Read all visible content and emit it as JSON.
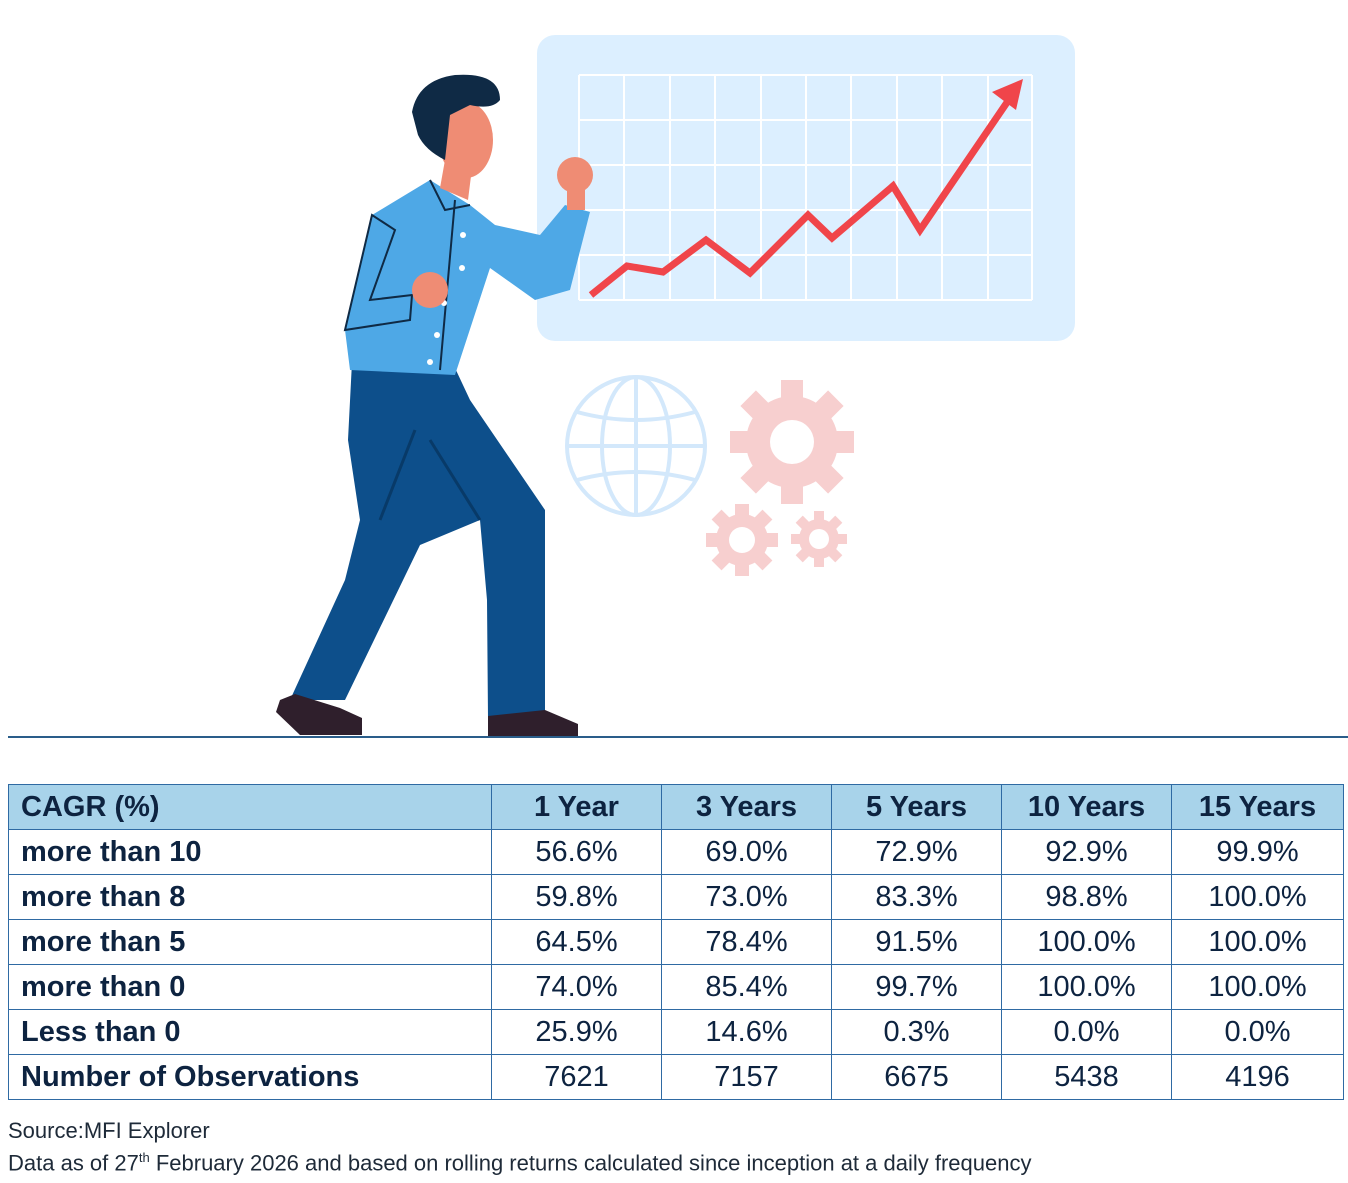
{
  "illustration": {
    "description_icons": [
      "person-icon",
      "line-chart-icon",
      "globe-icon",
      "gear-icon"
    ],
    "colors": {
      "board": "#dcefff",
      "trend_line": "#f0454a",
      "shirt": "#4ea8e6",
      "pants": "#0d4f8b",
      "skin": "#ef8c74",
      "hair": "#0f2a45",
      "globe": "#cfe6fa",
      "gears": "#f7cfcf"
    }
  },
  "table": {
    "headers": [
      "CAGR (%)",
      "1 Year",
      "3 Years",
      "5 Years",
      "10 Years",
      "15 Years"
    ],
    "rows": [
      {
        "label": "more than 10",
        "values": [
          "56.6%",
          "69.0%",
          "72.9%",
          "92.9%",
          "99.9%"
        ]
      },
      {
        "label": "more than 8",
        "values": [
          "59.8%",
          "73.0%",
          "83.3%",
          "98.8%",
          "100.0%"
        ]
      },
      {
        "label": "more than 5",
        "values": [
          "64.5%",
          "78.4%",
          "91.5%",
          "100.0%",
          "100.0%"
        ]
      },
      {
        "label": "more than 0",
        "values": [
          "74.0%",
          "85.4%",
          "99.7%",
          "100.0%",
          "100.0%"
        ]
      },
      {
        "label": "Less than 0",
        "values": [
          "25.9%",
          "14.6%",
          "0.3%",
          "0.0%",
          "0.0%"
        ]
      },
      {
        "label": "Number of Observations",
        "values": [
          "7621",
          "7157",
          "6675",
          "5438",
          "4196"
        ]
      }
    ],
    "colors": {
      "header_bg": "#a8d3ea",
      "border": "#2f6aa3",
      "text": "#0d2340"
    }
  },
  "footer": {
    "source": "Source:MFI Explorer",
    "note_prefix": "Data as of 27",
    "note_sup": "th",
    "note_suffix": " February 2026 and based on rolling returns calculated since inception at a daily frequency"
  }
}
